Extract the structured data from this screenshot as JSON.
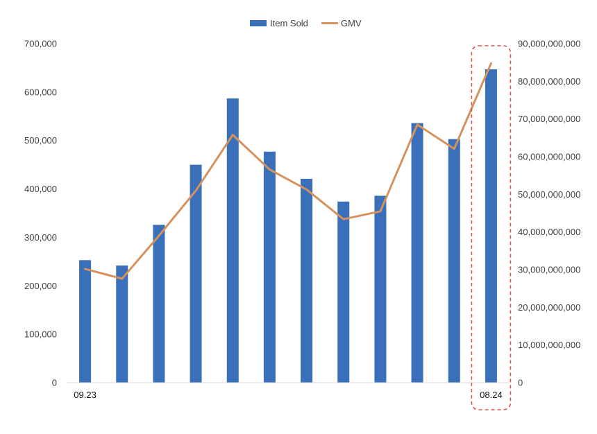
{
  "chart_data": {
    "type": "bar",
    "categories": [
      "09.23",
      "",
      "",
      "",
      "",
      "",
      "",
      "",
      "",
      "",
      "",
      "08.24"
    ],
    "series": [
      {
        "name": "Item Sold",
        "type": "bar",
        "axis": "left",
        "color": "#3a6fba",
        "values": [
          253000,
          242000,
          326000,
          450000,
          587000,
          477000,
          421000,
          374000,
          386000,
          536000,
          503000,
          647000
        ]
      },
      {
        "name": "GMV",
        "type": "line",
        "axis": "right",
        "color": "#d4925e",
        "values": [
          30200000000,
          27600000000,
          39000000000,
          51000000000,
          65800000000,
          56600000000,
          51300000000,
          43400000000,
          45500000000,
          68500000000,
          62100000000,
          84800000000
        ]
      }
    ],
    "y_left": {
      "min": 0,
      "max": 700000,
      "ticks": [
        "0",
        "100,000",
        "200,000",
        "300,000",
        "400,000",
        "500,000",
        "600,000",
        "700,000"
      ]
    },
    "y_right": {
      "min": 0,
      "max": 90000000000,
      "ticks": [
        "0",
        "10,000,000,000",
        "20,000,000,000",
        "30,000,000,000",
        "40,000,000,000",
        "50,000,000,000",
        "60,000,000,000",
        "70,000,000,000",
        "80,000,000,000",
        "90,000,000,000"
      ]
    },
    "grid": false,
    "legend": {
      "position": "top-center",
      "entries": [
        "Item Sold",
        "GMV"
      ]
    },
    "highlight": {
      "category_index": 11,
      "style": "dashed",
      "color": "#d9534f"
    },
    "title": "",
    "xlabel": "",
    "ylabel": ""
  }
}
